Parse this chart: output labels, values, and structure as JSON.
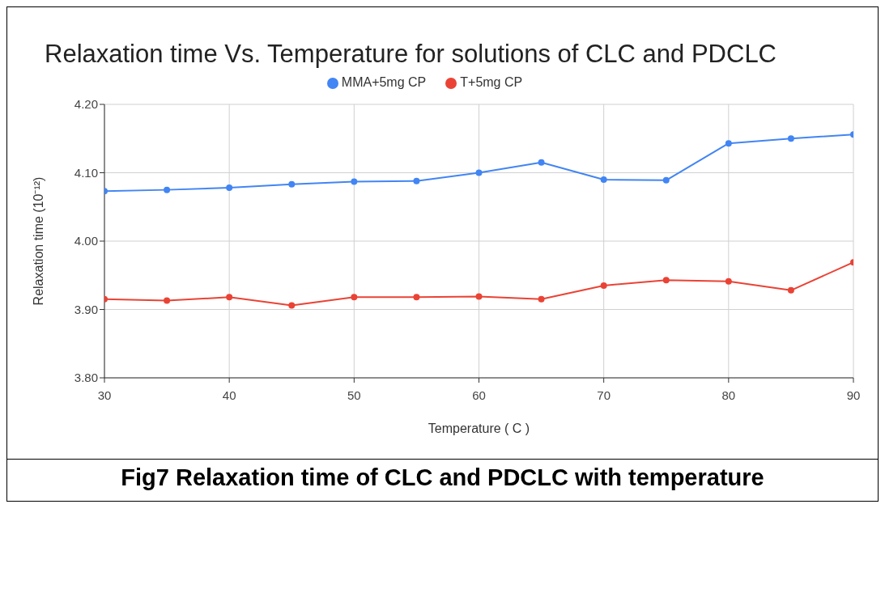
{
  "chart_data": {
    "type": "line",
    "title": "Relaxation time Vs. Temperature for solutions of CLC and PDCLC",
    "xlabel": "Temperature ( C )",
    "ylabel": "Relaxation time (10⁻¹²)",
    "annotations": [
      "Fig7 Relaxation time of CLC and PDCLC with temperature"
    ],
    "x": [
      30,
      35,
      40,
      45,
      50,
      55,
      60,
      65,
      70,
      75,
      80,
      85,
      90
    ],
    "series": [
      {
        "name": "MMA+5mg CP",
        "color": "#4285f4",
        "values": [
          4.073,
          4.075,
          4.078,
          4.083,
          4.087,
          4.088,
          4.1,
          4.115,
          4.09,
          4.089,
          4.143,
          4.15,
          4.156
        ]
      },
      {
        "name": "T+5mg CP",
        "color": "#ea4335",
        "values": [
          3.915,
          3.913,
          3.918,
          3.906,
          3.918,
          3.918,
          3.919,
          3.915,
          3.935,
          3.943,
          3.941,
          3.928,
          3.969
        ]
      }
    ],
    "xlim": [
      30,
      90
    ],
    "xticks": [
      30,
      40,
      50,
      60,
      70,
      80,
      90
    ],
    "ylim": [
      3.8,
      4.2
    ],
    "yticks": [
      {
        "value": 3.8,
        "label": "3.80"
      },
      {
        "value": 3.9,
        "label": "3.90"
      },
      {
        "value": 4.0,
        "label": "4.00"
      },
      {
        "value": 4.1,
        "label": "4.10"
      },
      {
        "value": 4.2,
        "label": "4.20"
      }
    ],
    "grid": true,
    "legend": "top",
    "marker": "circle",
    "line_style": "solid"
  }
}
